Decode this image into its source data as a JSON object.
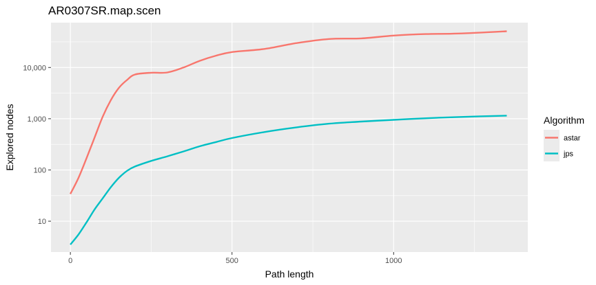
{
  "chart_data": {
    "type": "line",
    "title": "AR0307SR.map.scen",
    "xlabel": "Path length",
    "ylabel": "Explored nodes",
    "y_scale": "log10",
    "xlim": [
      -60,
      1415
    ],
    "ylim": [
      2.5,
      75000
    ],
    "x_ticks": [
      0,
      500,
      1000
    ],
    "x_tick_labels": [
      "0",
      "500",
      "1000"
    ],
    "y_ticks": [
      10,
      100,
      1000,
      10000
    ],
    "y_tick_labels": [
      "10",
      "100",
      "1,000",
      "10,000"
    ],
    "grid": true,
    "legend": {
      "title": "Algorithm",
      "position": "right"
    },
    "series": [
      {
        "name": "astar",
        "color": "#F8766D",
        "x": [
          0,
          25,
          50,
          75,
          100,
          125,
          150,
          175,
          200,
          250,
          300,
          350,
          400,
          450,
          500,
          600,
          700,
          800,
          900,
          1000,
          1100,
          1200,
          1350
        ],
        "y": [
          34,
          70,
          170,
          430,
          1100,
          2300,
          4000,
          5700,
          7300,
          7900,
          8000,
          10000,
          13500,
          17000,
          20000,
          23000,
          30000,
          36000,
          37000,
          42000,
          45000,
          46000,
          51000
        ]
      },
      {
        "name": "jps",
        "color": "#00BFC4",
        "x": [
          0,
          25,
          50,
          75,
          100,
          125,
          150,
          175,
          200,
          250,
          300,
          350,
          400,
          450,
          500,
          600,
          700,
          800,
          900,
          1000,
          1100,
          1200,
          1350
        ],
        "y": [
          3.5,
          5.5,
          9.5,
          17,
          28,
          46,
          70,
          96,
          117,
          150,
          185,
          230,
          290,
          350,
          420,
          550,
          680,
          800,
          880,
          950,
          1020,
          1080,
          1150
        ]
      }
    ]
  }
}
